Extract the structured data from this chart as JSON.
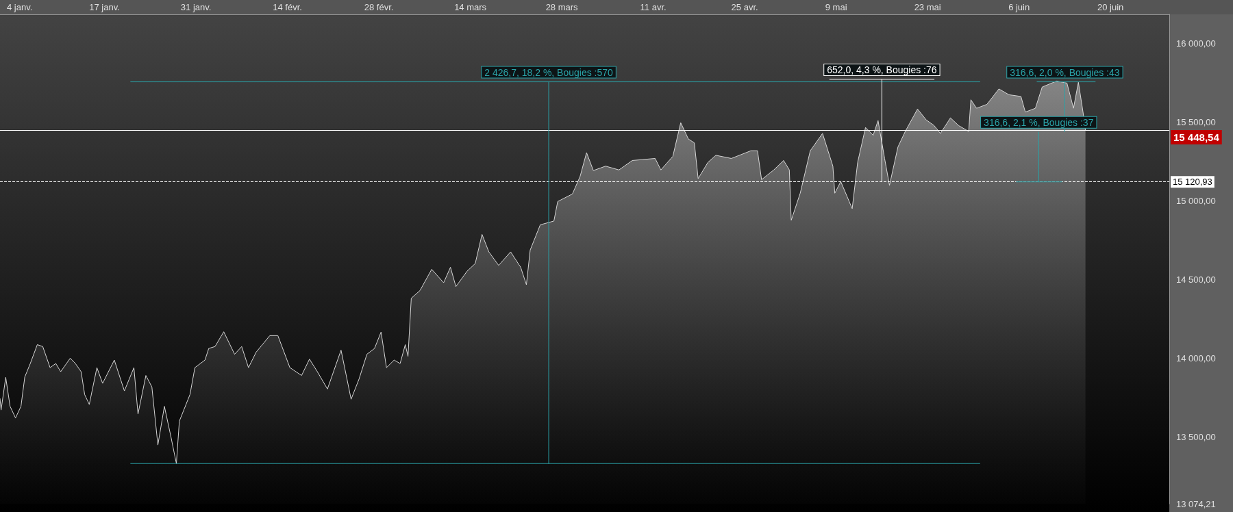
{
  "chart_data": {
    "type": "area",
    "marker": "none",
    "xlim": [
      "--01-01T00:00",
      "--06-29T00:00"
    ],
    "xticks": [
      {
        "value": "--01-04",
        "label": "4 janv."
      },
      {
        "value": "--01-17",
        "label": "17 janv."
      },
      {
        "value": "--01-31",
        "label": "31 janv."
      },
      {
        "value": "--02-14",
        "label": "14 févr."
      },
      {
        "value": "--02-28",
        "label": "28 févr."
      },
      {
        "value": "--03-14",
        "label": "14 mars"
      },
      {
        "value": "--03-28",
        "label": "28 mars"
      },
      {
        "value": "--04-11",
        "label": "11 avr."
      },
      {
        "value": "--04-25",
        "label": "25 avr."
      },
      {
        "value": "--05-09",
        "label": "9 mai"
      },
      {
        "value": "--05-23",
        "label": "23 mai"
      },
      {
        "value": "--06-06",
        "label": "6 juin"
      },
      {
        "value": "--06-20",
        "label": "20 juin"
      }
    ],
    "ylim": [
      13074.21,
      16186
    ],
    "yticks": [
      {
        "value": 13074.21,
        "label": "13 074,21"
      },
      {
        "value": 13500,
        "label": "13 500,00"
      },
      {
        "value": 14000,
        "label": "14 000,00"
      },
      {
        "value": 14500,
        "label": "14 500,00"
      },
      {
        "value": 15000,
        "label": "15 000,00"
      },
      {
        "value": 15500,
        "label": "15 500,00"
      },
      {
        "value": 16000,
        "label": "16 000,00"
      }
    ],
    "series": [
      {
        "color": "#d6d6d6",
        "x": [
          "--01-01T00:00",
          "--01-01T04:00",
          "--01-01T21:00",
          "--01-02T13:00",
          "--01-03T09:00",
          "--01-04T05:00",
          "--01-04T19:00",
          "--01-05T15:00",
          "--01-06T17:00",
          "--01-07T13:00",
          "--01-08T16:00",
          "--01-09T13:00",
          "--01-10T07:00",
          "--01-11T18:00",
          "--01-12T13:00",
          "--01-13T10:00",
          "--01-13T23:00",
          "--01-14T16:00",
          "--01-15T20:00",
          "--01-16T17:00",
          "--01-18T12:00",
          "--01-20T01:00",
          "--01-21T12:00",
          "--01-22T03:00",
          "--01-23T08:00",
          "--01-24T06:00",
          "--01-25T04:00",
          "--01-26T04:00",
          "--01-27T04:00",
          "--01-28T00:00",
          "--01-28T11:00",
          "--01-30T02:00",
          "--01-30T20:00",
          "--02-01T09:00",
          "--02-01T23:00",
          "--02-02T22:00",
          "--02-04T06:00",
          "--02-05T22:00",
          "--02-07T00:00",
          "--02-08T01:00",
          "--02-09T05:00",
          "--02-11T07:00",
          "--02-12T13:00",
          "--02-14T09:00",
          "--02-16T04:00",
          "--02-17T09:00",
          "--02-18T14:00",
          "--02-20T03:00",
          "--02-22T05:00",
          "--02-23T18:00",
          "--02-24T23:00",
          "--02-26T04:00",
          "--02-27T08:00",
          "--02-28T08:00",
          "--03-01T04:00",
          "--03-02T08:00",
          "--03-03T06:00",
          "--03-04T01:00",
          "--03-04T11:00",
          "--03-04T23:00",
          "--03-06T07:00",
          "--03-08T02:00",
          "--03-09T22:00",
          "--03-10T23:00",
          "--03-11T19:00",
          "--03-13T12:00",
          "--03-14T18:00",
          "--03-15T19:00",
          "--03-16T20:00",
          "--03-18T08:00",
          "--03-20T04:00",
          "--03-21T17:00",
          "--03-22T14:00",
          "--03-23T04:00",
          "--03-24T17:00",
          "--03-26T19:00",
          "--03-27T09:00",
          "--03-29T15:00",
          "--03-30T19:00",
          "--03-31T19:00",
          "--04-01T20:00",
          "--04-03T17:00",
          "--04-05T18:00",
          "--04-07T19:00",
          "--04-11T07:00",
          "--04-12T04:00",
          "--04-14T00:00",
          "--04-15T05:00",
          "--04-16T09:00",
          "--04-17T07:00",
          "--04-17T21:00",
          "--04-19T09:00",
          "--04-20T14:00",
          "--04-22T23:00",
          "--04-25T23:00",
          "--04-26T23:00",
          "--04-27T14:00",
          "--04-29T11:00",
          "--04-30T23:00",
          "--05-01T20:00",
          "--05-02T03:00",
          "--05-03T12:00",
          "--05-05T01:00",
          "--05-06T22:00",
          "--05-08T12:00",
          "--05-08T19:00",
          "--05-09T17:00",
          "--05-11T11:00",
          "--05-12T07:00",
          "--05-13T12:00",
          "--05-14T16:00",
          "--05-15T10:00",
          "--05-16T10:00",
          "--05-17T04:00",
          "--05-18T11:00",
          "--05-19T14:00",
          "--05-21T11:00",
          "--05-22T19:00",
          "--05-24T00:00",
          "--05-24T23:00",
          "--05-26T12:00",
          "--05-27T18:00",
          "--05-29T07:00",
          "--05-29T15:00",
          "--05-30T12:00",
          "--06-01T02:00",
          "--06-02T22:00",
          "--06-04T11:00",
          "--06-06T07:00",
          "--06-06T23:00",
          "--06-08T12:00",
          "--06-09T13:00",
          "--06-11T18:00",
          "--06-13T08:00",
          "--06-14T08:00",
          "--06-15T02:00",
          "--06-15T19:00",
          "--06-16T04:00"
        ],
        "values": [
          13743,
          13670,
          13878,
          13694,
          13620,
          13694,
          13880,
          13965,
          14086,
          14074,
          13940,
          13966,
          13914,
          14000,
          13966,
          13914,
          13769,
          13706,
          13940,
          13840,
          13988,
          13792,
          13940,
          13645,
          13890,
          13817,
          13448,
          13694,
          13500,
          13330,
          13600,
          13769,
          13940,
          13988,
          14062,
          14074,
          14168,
          14025,
          14074,
          13940,
          14038,
          14143,
          14143,
          13940,
          13890,
          13994,
          13914,
          13804,
          14051,
          13739,
          13867,
          14025,
          14062,
          14166,
          13940,
          13988,
          13966,
          14086,
          14012,
          14381,
          14430,
          14565,
          14480,
          14578,
          14455,
          14553,
          14602,
          14787,
          14676,
          14590,
          14676,
          14578,
          14467,
          14688,
          14848,
          14872,
          14996,
          15044,
          15154,
          15307,
          15193,
          15221,
          15197,
          15257,
          15270,
          15197,
          15283,
          15497,
          15394,
          15369,
          15142,
          15245,
          15290,
          15270,
          15319,
          15319,
          15135,
          15197,
          15257,
          15197,
          14877,
          15049,
          15319,
          15429,
          15221,
          15049,
          15123,
          14951,
          15245,
          15467,
          15417,
          15511,
          15270,
          15099,
          15343,
          15442,
          15584,
          15515,
          15479,
          15429,
          15528,
          15479,
          15442,
          15643,
          15589,
          15614,
          15712,
          15675,
          15664,
          15565,
          15589,
          15724,
          15762,
          15749,
          15589,
          15754,
          15565,
          15449
        ]
      },
      {
        "type": "line",
        "color": "#2aa3a8",
        "x": [
          "--01-21",
          "--05-31"
        ],
        "values": [
          15757,
          15757
        ]
      },
      {
        "type": "line",
        "color": "#2aa3a8",
        "x": [
          "--01-21",
          "--05-31"
        ],
        "values": [
          13330,
          13330
        ]
      },
      {
        "type": "line",
        "color": "#2aa3a8",
        "x": [
          "--03-26",
          "--03-26"
        ],
        "values": [
          13330,
          15757
        ]
      },
      {
        "type": "line",
        "color": "#ffffff",
        "x": [
          "--05-08",
          "--05-24"
        ],
        "values": [
          15773,
          15773
        ]
      },
      {
        "type": "line",
        "color": "#ffffff",
        "x": [
          "--05-16",
          "--05-16"
        ],
        "values": [
          15121,
          15773
        ]
      },
      {
        "type": "line",
        "color": "#2aa3a8",
        "x": [
          "--06-08T18:00",
          "--06-17T16:00"
        ],
        "values": [
          15757,
          15757
        ]
      },
      {
        "type": "line",
        "color": "#2aa3a8",
        "x": [
          "--06-13",
          "--06-13"
        ],
        "values": [
          15440,
          15757
        ]
      },
      {
        "type": "line",
        "color": "#2aa3a8",
        "x": [
          "--06-05T14:00",
          "--06-12T14:00"
        ],
        "values": [
          15121,
          15121
        ]
      },
      {
        "type": "line",
        "color": "#2aa3a8",
        "x": [
          "--06-09",
          "--06-09"
        ],
        "values": [
          15121,
          15438
        ]
      }
    ],
    "ref_lines": [
      {
        "axis": "y",
        "value": 15448.54,
        "label": "15 448,54",
        "color": "#ffffff",
        "line_style": "solid"
      },
      {
        "axis": "y",
        "value": 15120.93,
        "label": "15 120,93",
        "color": "#ffffff",
        "line_style": "dashed"
      }
    ],
    "annotations": [
      "2 426,7, 18,2 %, Bougies :570",
      "652,0, 4,3 %, Bougies :76",
      "316,6, 2,0 %, Bougies :43",
      "316,6, 2,1 %, Bougies :37"
    ]
  }
}
